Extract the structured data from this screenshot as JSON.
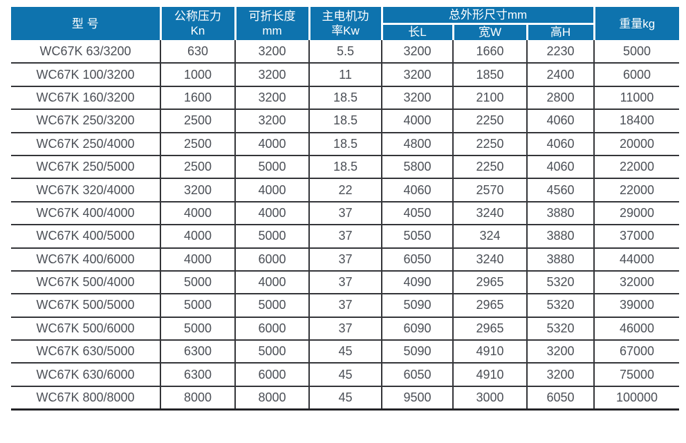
{
  "colors": {
    "header_bg": "#0e73ae",
    "grid_line": "#333438",
    "body_text": "#4b4f56",
    "header_text": "#ffffff"
  },
  "table": {
    "columns": [
      {
        "id": "model",
        "label_lines": [
          "型 号",
          ""
        ]
      },
      {
        "id": "pressure",
        "label_lines": [
          "公称压力",
          "Kn"
        ]
      },
      {
        "id": "fold_length",
        "label_lines": [
          "可折长度",
          "mm"
        ]
      },
      {
        "id": "motor_power",
        "label_lines": [
          "主电机功",
          "率Kw"
        ]
      }
    ],
    "dims_group": {
      "label": "总外形尺寸mm",
      "sub": [
        "长L",
        "宽W",
        "高H"
      ]
    },
    "weight_label": "重量kg",
    "rows": [
      [
        "WC67K 63/3200",
        "630",
        "3200",
        "5.5",
        "3200",
        "1660",
        "2230",
        "5000"
      ],
      [
        "WC67K 100/3200",
        "1000",
        "3200",
        "11",
        "3200",
        "1850",
        "2400",
        "6000"
      ],
      [
        "WC67K 160/3200",
        "1600",
        "3200",
        "18.5",
        "3200",
        "2100",
        "2800",
        "11000"
      ],
      [
        "WC67K 250/3200",
        "2500",
        "3200",
        "18.5",
        "4000",
        "2250",
        "4060",
        "18400"
      ],
      [
        "WC67K 250/4000",
        "2500",
        "4000",
        "18.5",
        "4800",
        "2250",
        "4060",
        "20000"
      ],
      [
        "WC67K 250/5000",
        "2500",
        "5000",
        "18.5",
        "5800",
        "2250",
        "4060",
        "22000"
      ],
      [
        "WC67K 320/4000",
        "3200",
        "4000",
        "22",
        "4060",
        "2570",
        "4560",
        "22000"
      ],
      [
        "WC67K 400/4000",
        "4000",
        "4000",
        "37",
        "4050",
        "3240",
        "3880",
        "29000"
      ],
      [
        "WC67K 400/5000",
        "4000",
        "5000",
        "37",
        "5050",
        "324",
        "3880",
        "37000"
      ],
      [
        "WC67K 400/6000",
        "4000",
        "6000",
        "37",
        "6050",
        "3240",
        "3880",
        "44000"
      ],
      [
        "WC67K 500/4000",
        "5000",
        "4000",
        "37",
        "4090",
        "2965",
        "5320",
        "32000"
      ],
      [
        "WC67K 500/5000",
        "5000",
        "5000",
        "37",
        "5090",
        "2965",
        "5320",
        "39000"
      ],
      [
        "WC67K 500/6000",
        "5000",
        "6000",
        "37",
        "6090",
        "2965",
        "5320",
        "46000"
      ],
      [
        "WC67K 630/5000",
        "6300",
        "5000",
        "45",
        "5090",
        "4910",
        "3200",
        "67000"
      ],
      [
        "WC67K 630/6000",
        "6300",
        "6000",
        "45",
        "6050",
        "4910",
        "3200",
        "75000"
      ],
      [
        "WC67K 800/8000",
        "8000",
        "8000",
        "45",
        "9500",
        "3000",
        "6050",
        "100000"
      ]
    ]
  }
}
